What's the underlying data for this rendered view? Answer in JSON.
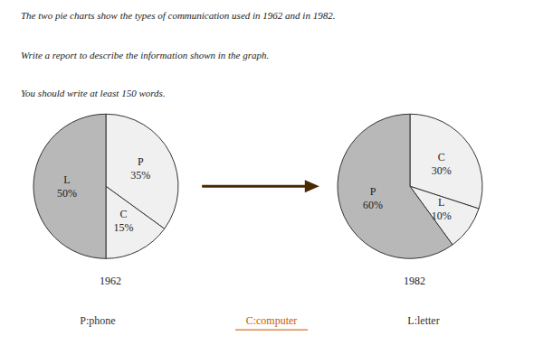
{
  "title": "The two pie charts show the types of communication used in 1962 and in 1982.",
  "subtitle": "Write a report to describe the information shown in the graph.",
  "annotations": [
    {
      "text": "You should write at least 150 words."
    },
    {
      "text": "P:phone",
      "color": "#333333"
    },
    {
      "text": "C:computer",
      "color": "#cc5500"
    },
    {
      "text": "L:letter",
      "color": "#333333"
    }
  ],
  "chart_data": [
    {
      "type": "pie",
      "title": "1962",
      "categories": [
        "P",
        "C",
        "L"
      ],
      "values": [
        35,
        15,
        50
      ],
      "value_labels": [
        "35%",
        "15%",
        "50%"
      ],
      "colors": [
        "#f0f0f0",
        "#f0f0f0",
        "#b8b8b8"
      ],
      "data_labels": true
    },
    {
      "type": "pie",
      "title": "1982",
      "categories": [
        "C",
        "L",
        "P"
      ],
      "values": [
        30,
        10,
        60
      ],
      "value_labels": [
        "30%",
        "10%",
        "60%"
      ],
      "colors": [
        "#f0f0f0",
        "#f0f0f0",
        "#b8b8b8"
      ],
      "data_labels": true
    }
  ]
}
